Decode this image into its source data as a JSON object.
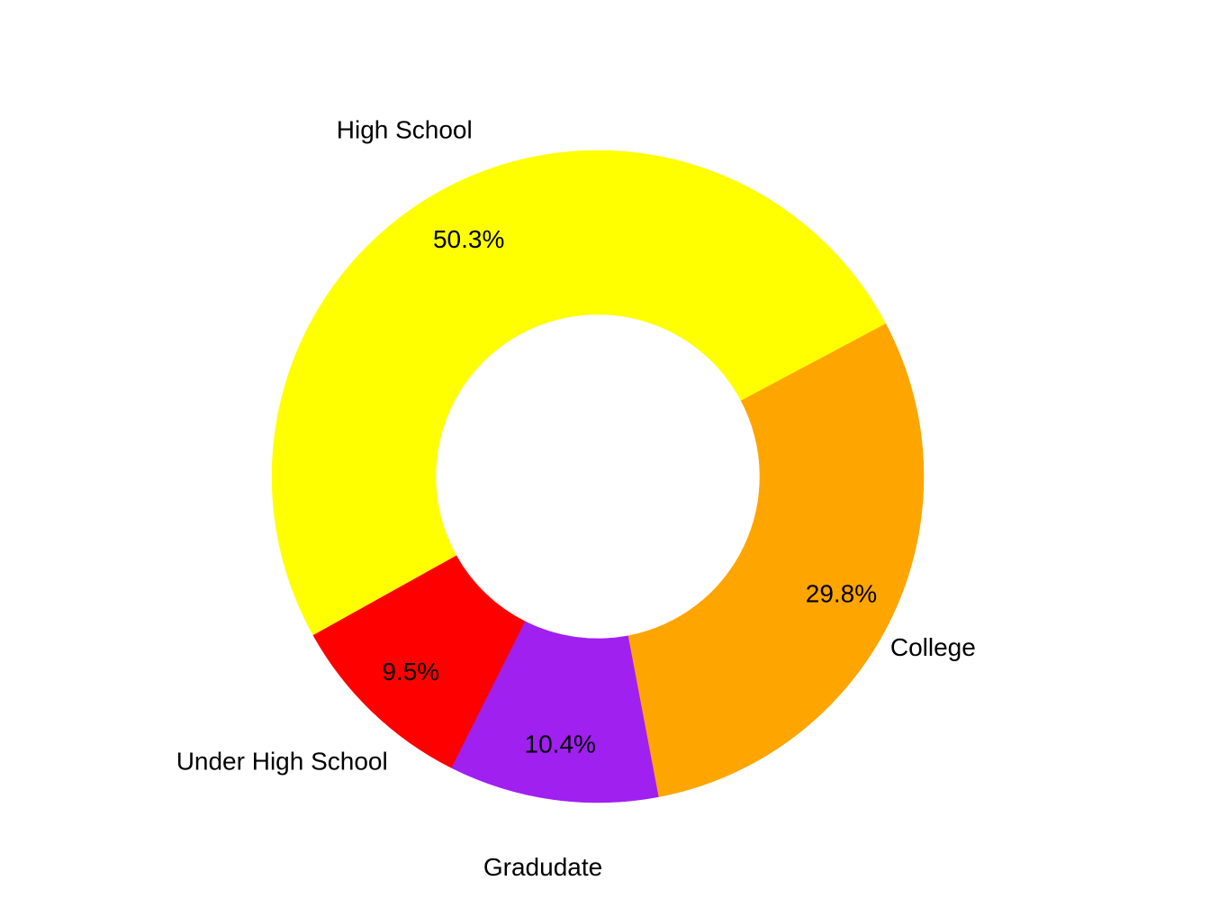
{
  "chart_data": {
    "type": "pie",
    "variant": "donut",
    "categories": [
      "College",
      "Gradudate",
      "Under High School",
      "High School"
    ],
    "values": [
      29.8,
      10.4,
      9.5,
      50.3
    ],
    "value_labels": [
      "29.8%",
      "10.4%",
      "9.5%",
      "50.3%"
    ],
    "colors": [
      "#FFA500",
      "#A020F0",
      "#FF0000",
      "#FFFF00"
    ],
    "title": "",
    "legend": "none",
    "labels_position": "outside"
  }
}
